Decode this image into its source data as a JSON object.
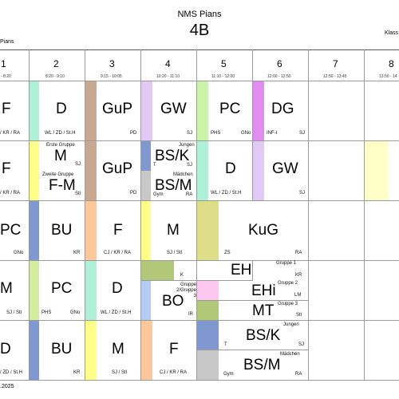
{
  "header": {
    "school": "NMS Pians",
    "class_name": "4B",
    "left_fragment": "Pians",
    "right_fragment": "Klass"
  },
  "periods": [
    {
      "num": "1",
      "time": "- 8:20"
    },
    {
      "num": "2",
      "time": "8:20 - 9:10"
    },
    {
      "num": "3",
      "time": "9:15 - 10:05"
    },
    {
      "num": "4",
      "time": "10:20 - 11:10"
    },
    {
      "num": "5",
      "time": "11:10 - 12:00"
    },
    {
      "num": "6",
      "time": "12:00 - 12:50"
    },
    {
      "num": "7",
      "time": "12:50 - 13:45"
    },
    {
      "num": "8",
      "time": "13:50 - 14"
    }
  ],
  "rows": {
    "r1": {
      "p1": {
        "subject": "F",
        "teacher": "/ KR / RA"
      },
      "p2": {
        "subject": "D",
        "teacher": "WL / ZD / St.H"
      },
      "p3": {
        "subject": "GuP",
        "teacher": "PD"
      },
      "p4": {
        "subject": "GW",
        "teacher": "SJ"
      },
      "p5": {
        "subject": "PC",
        "teacher_a": "PHS",
        "teacher_b": "GNo"
      },
      "p6": {
        "subject": "DG",
        "teacher_a": "INF-I",
        "teacher_b": "SJ"
      }
    },
    "r2": {
      "p1": {
        "subject": "F",
        "teacher": "/ KR / RA"
      },
      "p2": {
        "group1": "Erste Gruppe",
        "subject1": "M",
        "teacher1": "SJ",
        "group2": "Zweite Gruppe",
        "subject2": "F-M",
        "teacher2": "Stl"
      },
      "p3": {
        "subject": "GuP",
        "teacher": "PD"
      },
      "p4": {
        "group1": "Jungen",
        "subject1": "BS/K",
        "teacher1": "T",
        "teacher1b": "SJ",
        "group2": "Mädchen",
        "subject2": "BS/M",
        "teacher2": "Gym",
        "teacher2b": "RA"
      },
      "p5": {
        "subject": "D",
        "teacher": "WL / ZD / St.H"
      },
      "p6": {
        "subject": "GW",
        "teacher": "SJ"
      }
    },
    "r3": {
      "p1": {
        "subject": "PC",
        "teacher": "GNo"
      },
      "p2": {
        "subject": "BU",
        "teacher": "KR"
      },
      "p3": {
        "subject": "F",
        "teacher": "CJ / KR / RA"
      },
      "p4": {
        "subject": "M",
        "teacher": "SJ / Stl"
      },
      "p56": {
        "subject": "KuG",
        "teacher_a": "ZS",
        "teacher_b": "RA"
      }
    },
    "r4": {
      "p1": {
        "subject": "M",
        "teacher": "SJ / Stl"
      },
      "p2": {
        "subject": "PC",
        "teacher_a": "PHS",
        "teacher_b": "GNo"
      },
      "p3": {
        "subject": "D",
        "teacher": "WL / ZD / St.H"
      },
      "p4_top": {
        "subject": "EH",
        "group": "Gruppe 1",
        "teacher_a": "K",
        "teacher_b": "KR"
      },
      "p4_bo": {
        "group": "Gruppe 2/Gruppe 3",
        "subject": "BO",
        "teacher": "IR"
      },
      "p5_ehi": {
        "subject": "EHi",
        "group": "Gruppe 2",
        "teacher": "LM"
      },
      "p5_mt": {
        "subject": "MT",
        "group": "Gruppe 3",
        "teacher": "Stl"
      }
    },
    "r5": {
      "p1": {
        "subject": "D",
        "teacher": "/ ZD / St.H"
      },
      "p2": {
        "subject": "BU",
        "teacher": "KR"
      },
      "p3": {
        "subject": "M",
        "teacher": "SJ / Stl"
      },
      "p4": {
        "subject": "F",
        "teacher": "CJ / KR / RA"
      },
      "p5": {
        "group1": "Jungen",
        "subject1": "BS/K",
        "teacher1": "T",
        "teacher1b": "SJ",
        "group2": "Mädchen",
        "subject2": "BS/M",
        "teacher2": "Gym",
        "teacher2b": "RA"
      }
    }
  },
  "footer": {
    "date": ".2025"
  },
  "colors": {
    "mint": "#aef0d8",
    "yellow": "#ffff88",
    "pale_yellow": "#ffffc8",
    "brown": "#c8a890",
    "lavender": "#e2c8f4",
    "light_green": "#ccf4a8",
    "magenta": "#e08cf0",
    "blue": "#7f98d0",
    "orange": "#ffc89a",
    "olive": "#dede88",
    "moss": "#b0c878",
    "pink": "#fcc8f0",
    "light_blue": "#b4ccf4",
    "grey": "#c8c8c8",
    "lime": "#d4eca0"
  }
}
